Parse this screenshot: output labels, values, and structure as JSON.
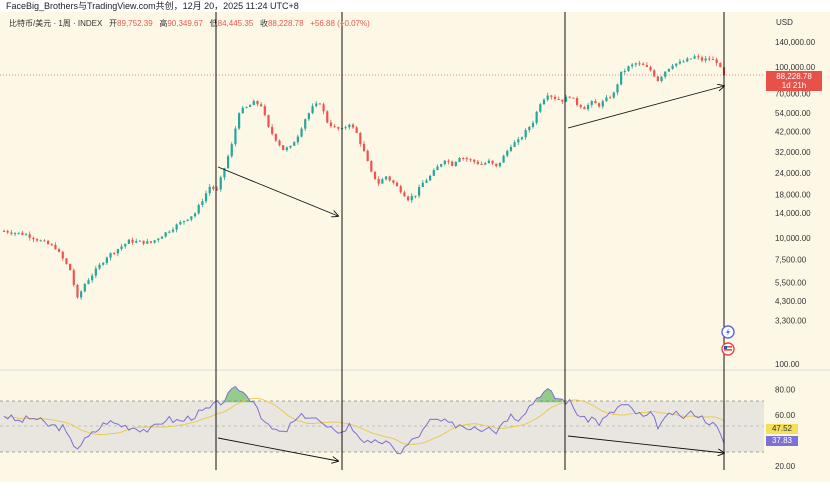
{
  "caption": "FaceBig_Brothers与TradingView.com共创，12月 20，2025 11:24 UTC+8",
  "legend": {
    "symbol": "比特币/美元 · 1周 · INDEX",
    "open_label": "开",
    "open": "89,752.39",
    "high_label": "高",
    "high": "90,349.67",
    "low_label": "低",
    "low": "84,445.35",
    "close_label": "收",
    "close": "88,228.78",
    "change": "+56.88 (+0.07%)"
  },
  "axis_currency": "USD",
  "price_tag": {
    "value": "88,228.78",
    "countdown": "1d 21h"
  },
  "rsi_tags": {
    "ma": "47.52",
    "rsi": "37.83"
  },
  "colors": {
    "background": "#fdf8e6",
    "up": "#26a69a",
    "down": "#ef5350",
    "rsi_line": "#7e6fd3",
    "rsi_ma": "#e8c84a",
    "rsi_band": "#e9e6df",
    "overbought_fill": "#4caf50"
  },
  "chart_data": [
    {
      "type": "candlestick",
      "title": "",
      "yscale": "log",
      "ylim": [
        2900,
        165000
      ],
      "y_ticks": [
        3300,
        4300,
        5500,
        7500,
        10000,
        14000,
        18000,
        24000,
        32000,
        42000,
        54000,
        70000,
        100000,
        140000
      ],
      "y_tick_labels": [
        "3,300.00",
        "4,300.00",
        "5,500.00",
        "7,500.00",
        "10,000.00",
        "14,000.00",
        "18,000.00",
        "24,000.00",
        "32,000.00",
        "42,000.00",
        "54,000.00",
        "70,000.00",
        "100,000.00",
        "140,000.00"
      ],
      "last_price": 88228.78,
      "series": [
        {
          "name": "BTC/USD",
          "anchors": [
            [
              0,
              11000
            ],
            [
              6,
              10500
            ],
            [
              14,
              8800
            ],
            [
              18,
              6500
            ],
            [
              20,
              4400
            ],
            [
              22,
              5400
            ],
            [
              28,
              7800
            ],
            [
              34,
              9600
            ],
            [
              40,
              9400
            ],
            [
              46,
              11500
            ],
            [
              52,
              14000
            ],
            [
              56,
              20000
            ],
            [
              58,
              19000
            ],
            [
              62,
              35000
            ],
            [
              64,
              55000
            ],
            [
              66,
              58000
            ],
            [
              68,
              62000
            ],
            [
              70,
              60000
            ],
            [
              72,
              44000
            ],
            [
              74,
              38000
            ],
            [
              76,
              33000
            ],
            [
              78,
              34000
            ],
            [
              80,
              40000
            ],
            [
              82,
              50000
            ],
            [
              84,
              58000
            ],
            [
              86,
              62000
            ],
            [
              88,
              48000
            ],
            [
              90,
              44000
            ],
            [
              92,
              43000
            ],
            [
              94,
              47000
            ],
            [
              96,
              41000
            ],
            [
              98,
              32000
            ],
            [
              100,
              24000
            ],
            [
              102,
              21000
            ],
            [
              104,
              23000
            ],
            [
              106,
              21000
            ],
            [
              108,
              19000
            ],
            [
              110,
              17000
            ],
            [
              112,
              18000
            ],
            [
              114,
              21000
            ],
            [
              116,
              23000
            ],
            [
              118,
              26000
            ],
            [
              120,
              29000
            ],
            [
              122,
              27000
            ],
            [
              124,
              30000
            ],
            [
              126,
              29000
            ],
            [
              128,
              28000
            ],
            [
              130,
              27000
            ],
            [
              132,
              28000
            ],
            [
              134,
              26000
            ],
            [
              136,
              30000
            ],
            [
              138,
              35000
            ],
            [
              140,
              37000
            ],
            [
              142,
              42000
            ],
            [
              144,
              48000
            ],
            [
              146,
              62000
            ],
            [
              148,
              70000
            ],
            [
              150,
              66000
            ],
            [
              152,
              64000
            ],
            [
              154,
              68000
            ],
            [
              156,
              61000
            ],
            [
              158,
              58000
            ],
            [
              160,
              62000
            ],
            [
              162,
              60000
            ],
            [
              164,
              65000
            ],
            [
              166,
              70000
            ],
            [
              168,
              92000
            ],
            [
              170,
              100000
            ],
            [
              172,
              105000
            ],
            [
              174,
              102000
            ],
            [
              176,
              96000
            ],
            [
              178,
              84000
            ],
            [
              180,
              95000
            ],
            [
              182,
              104000
            ],
            [
              184,
              106000
            ],
            [
              186,
              110000
            ],
            [
              188,
              115000
            ],
            [
              190,
              110000
            ],
            [
              192,
              112000
            ],
            [
              194,
              108000
            ],
            [
              196,
              88228
            ]
          ]
        }
      ]
    },
    {
      "type": "line",
      "title": "",
      "ylim": [
        20,
        100
      ],
      "y_ticks": [
        20,
        40,
        60,
        80,
        100
      ],
      "y_tick_labels": [
        "20.00",
        "40.00",
        "60.00",
        "80.00",
        "100.00"
      ],
      "overbought": 70,
      "oversold": 30,
      "series": [
        {
          "name": "RSI",
          "anchors": [
            [
              0,
              60
            ],
            [
              4,
              55
            ],
            [
              8,
              58
            ],
            [
              12,
              52
            ],
            [
              16,
              50
            ],
            [
              18,
              40
            ],
            [
              20,
              35
            ],
            [
              24,
              45
            ],
            [
              28,
              55
            ],
            [
              32,
              52
            ],
            [
              36,
              50
            ],
            [
              40,
              48
            ],
            [
              44,
              57
            ],
            [
              48,
              55
            ],
            [
              52,
              60
            ],
            [
              56,
              65
            ],
            [
              60,
              72
            ],
            [
              62,
              78
            ],
            [
              64,
              81
            ],
            [
              66,
              75
            ],
            [
              68,
              72
            ],
            [
              70,
              60
            ],
            [
              72,
              50
            ],
            [
              74,
              48
            ],
            [
              76,
              45
            ],
            [
              78,
              52
            ],
            [
              80,
              57
            ],
            [
              82,
              60
            ],
            [
              84,
              58
            ],
            [
              86,
              55
            ],
            [
              88,
              48
            ],
            [
              90,
              50
            ],
            [
              92,
              46
            ],
            [
              94,
              52
            ],
            [
              96,
              46
            ],
            [
              98,
              40
            ],
            [
              100,
              36
            ],
            [
              102,
              40
            ],
            [
              104,
              38
            ],
            [
              106,
              33
            ],
            [
              108,
              31
            ],
            [
              110,
              37
            ],
            [
              112,
              42
            ],
            [
              114,
              47
            ],
            [
              116,
              55
            ],
            [
              118,
              56
            ],
            [
              120,
              54
            ],
            [
              122,
              52
            ],
            [
              124,
              53
            ],
            [
              126,
              50
            ],
            [
              128,
              52
            ],
            [
              130,
              49
            ],
            [
              132,
              53
            ],
            [
              134,
              47
            ],
            [
              136,
              56
            ],
            [
              138,
              60
            ],
            [
              140,
              58
            ],
            [
              142,
              64
            ],
            [
              144,
              70
            ],
            [
              146,
              77
            ],
            [
              148,
              79
            ],
            [
              150,
              74
            ],
            [
              152,
              72
            ],
            [
              154,
              70
            ],
            [
              156,
              62
            ],
            [
              158,
              56
            ],
            [
              160,
              58
            ],
            [
              162,
              54
            ],
            [
              164,
              58
            ],
            [
              166,
              63
            ],
            [
              168,
              68
            ],
            [
              170,
              66
            ],
            [
              172,
              62
            ],
            [
              174,
              58
            ],
            [
              176,
              60
            ],
            [
              178,
              52
            ],
            [
              180,
              56
            ],
            [
              182,
              62
            ],
            [
              184,
              58
            ],
            [
              186,
              60
            ],
            [
              188,
              62
            ],
            [
              190,
              58
            ],
            [
              192,
              55
            ],
            [
              194,
              50
            ],
            [
              196,
              37.83
            ]
          ]
        }
      ]
    }
  ]
}
